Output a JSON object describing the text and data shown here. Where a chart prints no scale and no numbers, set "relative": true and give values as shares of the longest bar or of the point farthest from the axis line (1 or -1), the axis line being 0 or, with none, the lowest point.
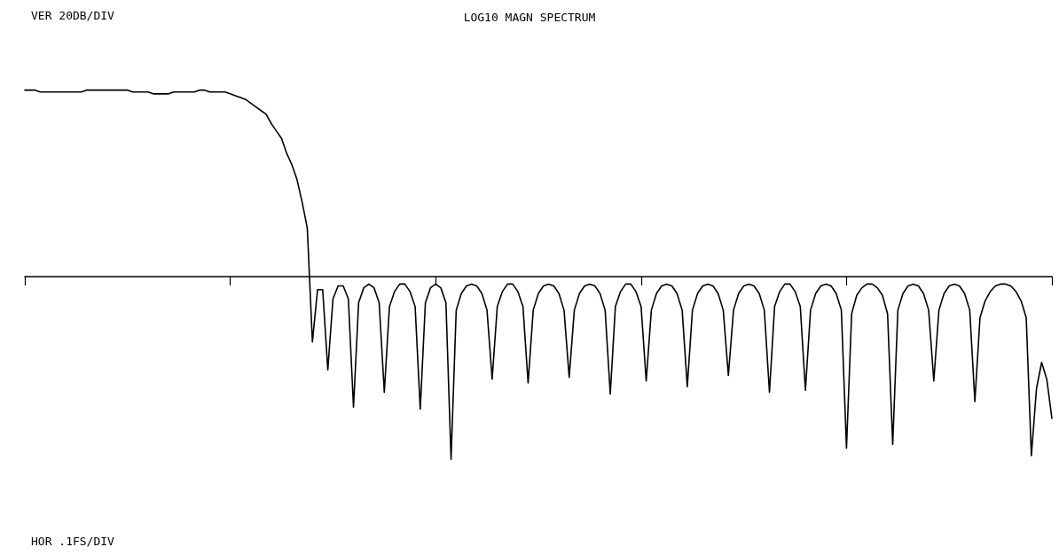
{
  "chart_data": {
    "type": "line",
    "title": "LOG10 MAGN SPECTRUM",
    "annotations": [
      "VER 20DB/DIV",
      "HOR .1FS/DIV"
    ],
    "relative": true,
    "grid": false,
    "marker": "none",
    "line_style": "solid",
    "categories": [
      null,
      null,
      null,
      null,
      null,
      null,
      null,
      null,
      null,
      null,
      null,
      null,
      null,
      null,
      null,
      null,
      null,
      null,
      null,
      null,
      null,
      null,
      null,
      null,
      null,
      null,
      null,
      null,
      null,
      null,
      null,
      null,
      null,
      null,
      null,
      null,
      null,
      null,
      null,
      null,
      null,
      null,
      null,
      null,
      null,
      null,
      null,
      null,
      null,
      null,
      null,
      null,
      null,
      null,
      null,
      null,
      null,
      null,
      null,
      null,
      null,
      null,
      null,
      null,
      null,
      null,
      null,
      null,
      null,
      null,
      null,
      null,
      null,
      null,
      null,
      null,
      null,
      null,
      null,
      null,
      null,
      null,
      null,
      null,
      null,
      null,
      null,
      null,
      null,
      null,
      null,
      null,
      null,
      null,
      null,
      null,
      null,
      null,
      null,
      null,
      null,
      null,
      null,
      null,
      null,
      null,
      null,
      null,
      null,
      null,
      null,
      null,
      null,
      null,
      null,
      null,
      null,
      null,
      null,
      null,
      null,
      null,
      null,
      null,
      null,
      null,
      null,
      null,
      null,
      null,
      null,
      null,
      null,
      null,
      null,
      null,
      null,
      null,
      null,
      null,
      null,
      null,
      null,
      null,
      null,
      null,
      null,
      null,
      null,
      null,
      null,
      null,
      null,
      null,
      null,
      null,
      null,
      null,
      null,
      null,
      null,
      null,
      null,
      null,
      null,
      null,
      null,
      null,
      null,
      null,
      null,
      null,
      null,
      null,
      null,
      null,
      null,
      null,
      null,
      null,
      null,
      null,
      null,
      null,
      null,
      null,
      null,
      null,
      null,
      null,
      null,
      null,
      null,
      null,
      null,
      null,
      null,
      null,
      null,
      null,
      null
    ],
    "series": [
      {
        "color": "#000000",
        "values": [
          1,
          1,
          1,
          0.99,
          0.99,
          0.99,
          0.99,
          0.99,
          0.99,
          0.99,
          0.99,
          0.99,
          1,
          1,
          1,
          1,
          1,
          1,
          1,
          1,
          1,
          0.99,
          0.99,
          0.99,
          0.99,
          0.98,
          0.98,
          0.98,
          0.98,
          0.99,
          0.99,
          0.99,
          0.99,
          0.99,
          1,
          1,
          0.99,
          0.99,
          0.99,
          0.99,
          0.98,
          0.97,
          0.96,
          0.95,
          0.93,
          0.91,
          0.89,
          0.87,
          0.82,
          0.78,
          0.74,
          0.66,
          0.6,
          0.52,
          0.4,
          0.26,
          -0.35,
          -0.07,
          -0.07,
          -0.5,
          -0.12,
          -0.05,
          -0.05,
          -0.12,
          -0.7,
          -0.14,
          -0.06,
          -0.04,
          -0.06,
          -0.14,
          -0.62,
          -0.16,
          -0.08,
          -0.04,
          -0.04,
          -0.08,
          -0.16,
          -0.71,
          -0.14,
          -0.06,
          -0.04,
          -0.06,
          -0.14,
          -0.98,
          -0.18,
          -0.09,
          -0.05,
          -0.04,
          -0.05,
          -0.09,
          -0.18,
          -0.55,
          -0.16,
          -0.08,
          -0.04,
          -0.04,
          -0.08,
          -0.16,
          -0.57,
          -0.18,
          -0.09,
          -0.05,
          -0.04,
          -0.05,
          -0.09,
          -0.18,
          -0.54,
          -0.18,
          -0.09,
          -0.05,
          -0.04,
          -0.05,
          -0.09,
          -0.18,
          -0.63,
          -0.16,
          -0.08,
          -0.04,
          -0.04,
          -0.08,
          -0.16,
          -0.56,
          -0.18,
          -0.09,
          -0.05,
          -0.04,
          -0.05,
          -0.09,
          -0.18,
          -0.59,
          -0.18,
          -0.09,
          -0.05,
          -0.04,
          -0.05,
          -0.09,
          -0.18,
          -0.53,
          -0.18,
          -0.09,
          -0.05,
          -0.04,
          -0.05,
          -0.09,
          -0.18,
          -0.62,
          -0.16,
          -0.08,
          -0.04,
          -0.04,
          -0.08,
          -0.16,
          -0.61,
          -0.18,
          -0.09,
          -0.05,
          -0.04,
          -0.05,
          -0.09,
          -0.18,
          -0.92,
          -0.2,
          -0.1,
          -0.06,
          -0.04,
          -0.04,
          -0.06,
          -0.1,
          -0.2,
          -0.9,
          -0.18,
          -0.09,
          -0.05,
          -0.04,
          -0.05,
          -0.09,
          -0.18,
          -0.56,
          -0.18,
          -0.09,
          -0.05,
          -0.04,
          -0.05,
          -0.09,
          -0.18,
          -0.67,
          -0.22,
          -0.13,
          -0.08,
          -0.05,
          -0.04,
          -0.04,
          -0.05,
          -0.08,
          -0.13,
          -0.22,
          -0.96,
          -0.6,
          -0.46,
          -0.55,
          -0.76
        ]
      }
    ]
  }
}
